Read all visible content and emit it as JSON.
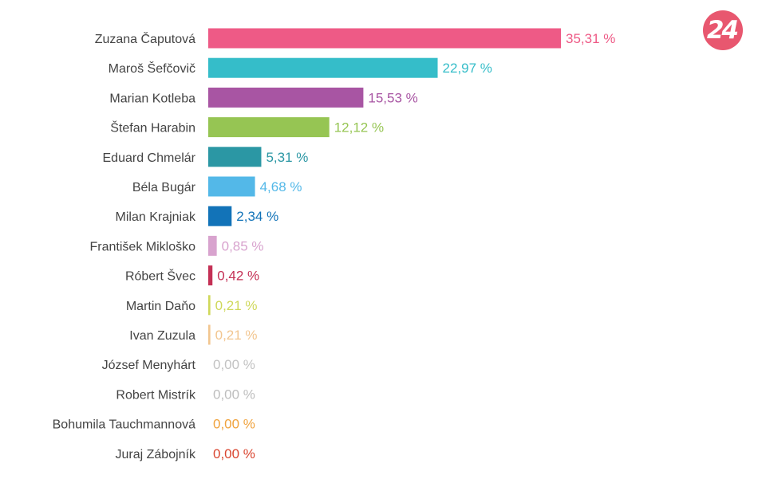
{
  "logo": {
    "text": "24",
    "color": "#e8576f"
  },
  "chart_data": {
    "type": "bar",
    "orientation": "horizontal",
    "title": "",
    "xlabel": "",
    "ylabel": "",
    "grid": false,
    "legend": "none",
    "xlim": [
      0,
      35.31
    ],
    "categories": [
      "Zuzana Čaputová",
      "Maroš Šefčovič",
      "Marian Kotleba",
      "Štefan Harabin",
      "Eduard Chmelár",
      "Béla Bugár",
      "Milan Krajniak",
      "František Mikloško",
      "Róbert Švec",
      "Martin Daňo",
      "Ivan Zuzula",
      "József Menyhárt",
      "Robert Mistrík",
      "Bohumila Tauchmannová",
      "Juraj Zábojník"
    ],
    "values": [
      35.31,
      22.97,
      15.53,
      12.12,
      5.31,
      4.68,
      2.34,
      0.85,
      0.42,
      0.21,
      0.21,
      0.0,
      0.0,
      0.0,
      0.0
    ],
    "value_labels": [
      "35,31 %",
      "22,97 %",
      "15,53 %",
      "12,12 %",
      "5,31 %",
      "4,68 %",
      "2,34 %",
      "0,85 %",
      "0,42 %",
      "0,21 %",
      "0,21 %",
      "0,00 %",
      "0,00 %",
      "0,00 %",
      "0,00 %"
    ],
    "colors": [
      "#ee5a86",
      "#35bdc9",
      "#a855a3",
      "#96c553",
      "#2b97a4",
      "#53b8e8",
      "#1273b8",
      "#d8a3ce",
      "#c43055",
      "#cfd85a",
      "#f2c690",
      "#c2c2c2",
      "#bdbdbd",
      "#f0a23c",
      "#d9452f"
    ]
  }
}
